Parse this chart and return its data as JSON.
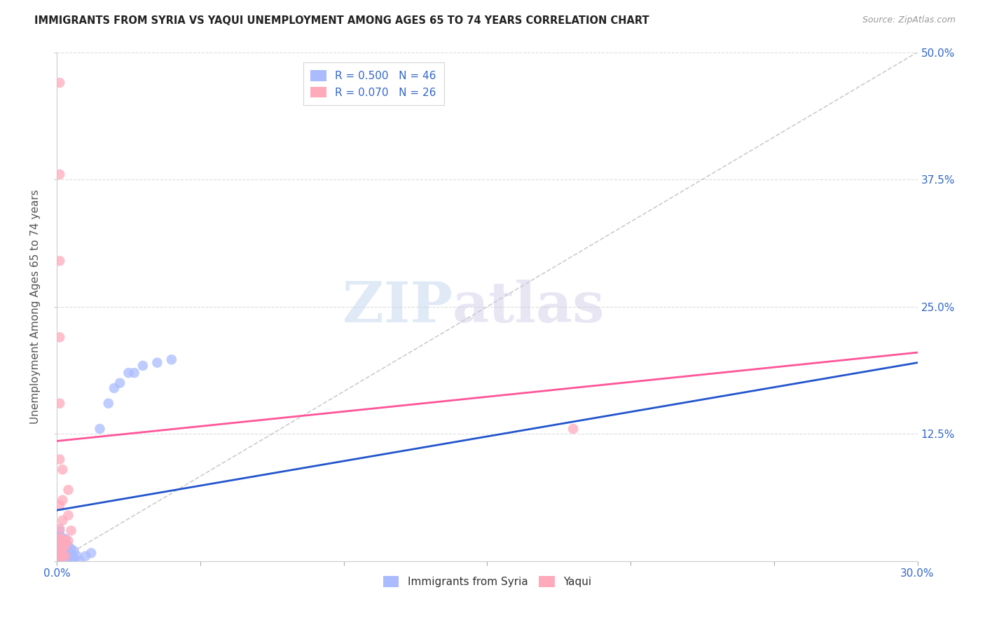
{
  "title": "IMMIGRANTS FROM SYRIA VS YAQUI UNEMPLOYMENT AMONG AGES 65 TO 74 YEARS CORRELATION CHART",
  "source": "Source: ZipAtlas.com",
  "xlim": [
    0.0,
    0.3
  ],
  "ylim": [
    0.0,
    0.5
  ],
  "ylabel": "Unemployment Among Ages 65 to 74 years",
  "syria_R": "0.500",
  "syria_N": "46",
  "yaqui_R": "0.070",
  "yaqui_N": "26",
  "syria_color": "#aabbff",
  "yaqui_color": "#ffaabb",
  "syria_trend_color": "#2255cc",
  "yaqui_trend_color": "#ff5599",
  "diagonal_color": "#cccccc",
  "watermark_zip": "ZIP",
  "watermark_atlas": "atlas",
  "syria_scatter": [
    [
      0.001,
      0.002
    ],
    [
      0.001,
      0.003
    ],
    [
      0.001,
      0.005
    ],
    [
      0.001,
      0.008
    ],
    [
      0.001,
      0.01
    ],
    [
      0.001,
      0.012
    ],
    [
      0.001,
      0.015
    ],
    [
      0.001,
      0.018
    ],
    [
      0.001,
      0.02
    ],
    [
      0.001,
      0.025
    ],
    [
      0.001,
      0.03
    ],
    [
      0.002,
      0.0
    ],
    [
      0.002,
      0.003
    ],
    [
      0.002,
      0.005
    ],
    [
      0.002,
      0.008
    ],
    [
      0.002,
      0.01
    ],
    [
      0.002,
      0.013
    ],
    [
      0.002,
      0.018
    ],
    [
      0.002,
      0.022
    ],
    [
      0.003,
      0.0
    ],
    [
      0.003,
      0.003
    ],
    [
      0.003,
      0.008
    ],
    [
      0.003,
      0.012
    ],
    [
      0.003,
      0.018
    ],
    [
      0.003,
      0.022
    ],
    [
      0.004,
      0.002
    ],
    [
      0.004,
      0.008
    ],
    [
      0.004,
      0.015
    ],
    [
      0.005,
      0.0
    ],
    [
      0.005,
      0.005
    ],
    [
      0.005,
      0.012
    ],
    [
      0.006,
      0.003
    ],
    [
      0.006,
      0.01
    ],
    [
      0.007,
      0.005
    ],
    [
      0.008,
      0.0
    ],
    [
      0.01,
      0.005
    ],
    [
      0.012,
      0.008
    ],
    [
      0.015,
      0.13
    ],
    [
      0.018,
      0.155
    ],
    [
      0.02,
      0.17
    ],
    [
      0.022,
      0.175
    ],
    [
      0.025,
      0.185
    ],
    [
      0.027,
      0.185
    ],
    [
      0.03,
      0.192
    ],
    [
      0.035,
      0.195
    ],
    [
      0.04,
      0.198
    ]
  ],
  "yaqui_scatter": [
    [
      0.001,
      0.002
    ],
    [
      0.001,
      0.008
    ],
    [
      0.001,
      0.015
    ],
    [
      0.001,
      0.022
    ],
    [
      0.001,
      0.032
    ],
    [
      0.001,
      0.055
    ],
    [
      0.001,
      0.1
    ],
    [
      0.001,
      0.155
    ],
    [
      0.001,
      0.22
    ],
    [
      0.001,
      0.295
    ],
    [
      0.001,
      0.38
    ],
    [
      0.001,
      0.47
    ],
    [
      0.002,
      0.005
    ],
    [
      0.002,
      0.012
    ],
    [
      0.002,
      0.022
    ],
    [
      0.002,
      0.04
    ],
    [
      0.002,
      0.06
    ],
    [
      0.002,
      0.09
    ],
    [
      0.003,
      0.005
    ],
    [
      0.003,
      0.015
    ],
    [
      0.003,
      0.02
    ],
    [
      0.004,
      0.02
    ],
    [
      0.004,
      0.045
    ],
    [
      0.004,
      0.07
    ],
    [
      0.005,
      0.03
    ],
    [
      0.18,
      0.13
    ]
  ],
  "syria_trendline": [
    [
      0.0,
      0.05
    ],
    [
      0.3,
      0.195
    ]
  ],
  "yaqui_trendline": [
    [
      0.0,
      0.118
    ],
    [
      0.3,
      0.205
    ]
  ]
}
